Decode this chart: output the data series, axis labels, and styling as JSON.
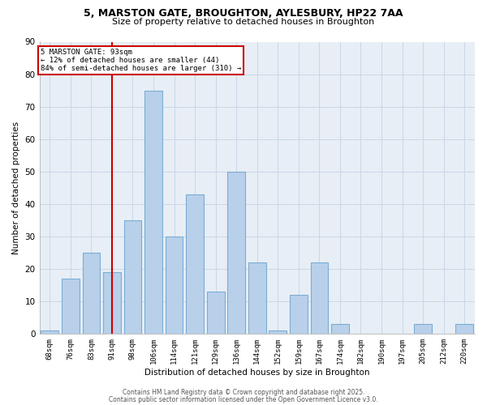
{
  "title_line1": "5, MARSTON GATE, BROUGHTON, AYLESBURY, HP22 7AA",
  "title_line2": "Size of property relative to detached houses in Broughton",
  "xlabel": "Distribution of detached houses by size in Broughton",
  "ylabel": "Number of detached properties",
  "categories": [
    "68sqm",
    "76sqm",
    "83sqm",
    "91sqm",
    "98sqm",
    "106sqm",
    "114sqm",
    "121sqm",
    "129sqm",
    "136sqm",
    "144sqm",
    "152sqm",
    "159sqm",
    "167sqm",
    "174sqm",
    "182sqm",
    "190sqm",
    "197sqm",
    "205sqm",
    "212sqm",
    "220sqm"
  ],
  "values": [
    1,
    17,
    25,
    19,
    35,
    75,
    30,
    43,
    13,
    50,
    22,
    1,
    12,
    22,
    3,
    0,
    0,
    0,
    3,
    0,
    3
  ],
  "bar_color": "#b8d0ea",
  "bar_edge_color": "#7aadd4",
  "marker_index": 3,
  "marker_line_color": "#cc0000",
  "annotation_line1": "5 MARSTON GATE: 93sqm",
  "annotation_line2": "← 12% of detached houses are smaller (44)",
  "annotation_line3": "84% of semi-detached houses are larger (310) →",
  "annotation_box_color": "#cc0000",
  "ylim": [
    0,
    90
  ],
  "yticks": [
    0,
    10,
    20,
    30,
    40,
    50,
    60,
    70,
    80,
    90
  ],
  "grid_color": "#c8d8e8",
  "background_color": "#e8eef5",
  "footer_line1": "Contains HM Land Registry data © Crown copyright and database right 2025.",
  "footer_line2": "Contains public sector information licensed under the Open Government Licence v3.0."
}
